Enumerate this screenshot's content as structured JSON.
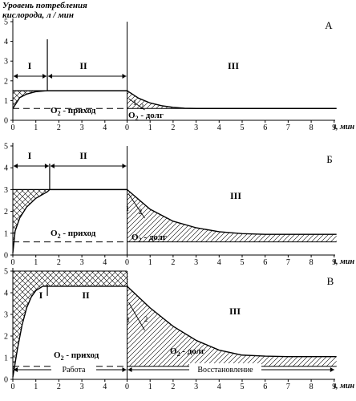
{
  "figure": {
    "y_axis_title_line1": "Уровень потребления",
    "y_axis_title_line2": "кислорода, л / мин",
    "x_unit": "t, мин"
  },
  "chart_data": [
    {
      "type": "line",
      "panel": "А",
      "ylim": [
        0,
        5
      ],
      "y_ticks": [
        "0",
        "1",
        "2",
        "3",
        "4",
        "5"
      ],
      "work_x_ticks": [
        "0",
        "1",
        "2",
        "3",
        "4"
      ],
      "recovery_x_ticks": [
        "0",
        "1",
        "2",
        "3",
        "4",
        "5",
        "6",
        "7",
        "8",
        "9"
      ],
      "work_duration": 5,
      "demand_level": 1.5,
      "baseline": 0.6,
      "intake_curve": [
        [
          0,
          0.6
        ],
        [
          0.3,
          1.15
        ],
        [
          0.6,
          1.33
        ],
        [
          1.0,
          1.45
        ],
        [
          1.5,
          1.5
        ],
        [
          5,
          1.5
        ]
      ],
      "zone_boundary": 1.5,
      "zones": [
        "I",
        "II",
        "III"
      ],
      "recovery_curve": [
        [
          0,
          1.5
        ],
        [
          0.5,
          1.12
        ],
        [
          1.0,
          0.88
        ],
        [
          1.5,
          0.74
        ],
        [
          2.0,
          0.66
        ],
        [
          2.5,
          0.61
        ],
        [
          3.0,
          0.6
        ],
        [
          9.1,
          0.6
        ]
      ],
      "intake_label_main": "O",
      "intake_label_sub": "2",
      "intake_label_tail": " - приход",
      "debt_label_main": "O",
      "debt_label_sub": "2",
      "debt_label_tail": " - долг",
      "curve_labels": [
        "1",
        "2"
      ],
      "work_label": "",
      "recovery_label": ""
    },
    {
      "type": "line",
      "panel": "Б",
      "ylim": [
        0,
        5
      ],
      "y_ticks": [
        "0",
        "1",
        "2",
        "3",
        "4",
        "5"
      ],
      "work_x_ticks": [
        "0",
        "1",
        "2",
        "3",
        "4"
      ],
      "recovery_x_ticks": [
        "0",
        "1",
        "2",
        "3",
        "4",
        "5",
        "6",
        "7",
        "8",
        "9"
      ],
      "work_duration": 5,
      "demand_level": 3.0,
      "baseline": 0.6,
      "intake_curve": [
        [
          0,
          0.1
        ],
        [
          0.1,
          1.1
        ],
        [
          0.3,
          1.7
        ],
        [
          0.6,
          2.2
        ],
        [
          1.0,
          2.6
        ],
        [
          1.5,
          2.9
        ],
        [
          1.6,
          3.0
        ],
        [
          5,
          3.0
        ]
      ],
      "zone_boundary": 1.6,
      "zones": [
        "I",
        "II",
        "III"
      ],
      "recovery_curve": [
        [
          0,
          3.0
        ],
        [
          1.0,
          2.1
        ],
        [
          2.0,
          1.55
        ],
        [
          3.0,
          1.25
        ],
        [
          4.0,
          1.07
        ],
        [
          5.0,
          0.98
        ],
        [
          6.0,
          0.95
        ],
        [
          9.1,
          0.95
        ]
      ],
      "intake_label_main": "O",
      "intake_label_sub": "2",
      "intake_label_tail": " - приход",
      "debt_label_main": "O",
      "debt_label_sub": "2",
      "debt_label_tail": " - долг",
      "curve_labels": [
        "1",
        "2"
      ],
      "work_label": "",
      "recovery_label": ""
    },
    {
      "type": "line",
      "panel": "В",
      "ylim": [
        0,
        5
      ],
      "y_ticks": [
        "0",
        "1",
        "2",
        "3",
        "4",
        "5"
      ],
      "work_x_ticks": [
        "0",
        "1",
        "2",
        "3",
        "4"
      ],
      "recovery_x_ticks": [
        "0",
        "1",
        "2",
        "3",
        "4",
        "5",
        "6",
        "7",
        "8",
        "9"
      ],
      "work_duration": 5,
      "demand_level": 5.0,
      "baseline": 0.6,
      "intake_curve": [
        [
          0,
          0.1
        ],
        [
          0.2,
          1.4
        ],
        [
          0.4,
          2.5
        ],
        [
          0.6,
          3.3
        ],
        [
          0.8,
          3.8
        ],
        [
          1.0,
          4.1
        ],
        [
          1.3,
          4.3
        ],
        [
          5,
          4.3
        ]
      ],
      "zone_boundary": 1.5,
      "zones": [
        "I",
        "II",
        "III"
      ],
      "recovery_curve": [
        [
          0,
          4.3
        ],
        [
          1.0,
          3.3
        ],
        [
          2.0,
          2.45
        ],
        [
          3.0,
          1.8
        ],
        [
          4.0,
          1.35
        ],
        [
          5.0,
          1.12
        ],
        [
          6.0,
          1.07
        ],
        [
          7.0,
          1.05
        ],
        [
          9.1,
          1.05
        ]
      ],
      "intake_label_main": "O",
      "intake_label_sub": "2",
      "intake_label_tail": " - приход",
      "debt_label_main": "O",
      "debt_label_sub": "2",
      "debt_label_tail": " - долг",
      "curve_labels": [
        "1",
        "2"
      ],
      "work_label": "Работа",
      "recovery_label": "Восстановление"
    }
  ]
}
